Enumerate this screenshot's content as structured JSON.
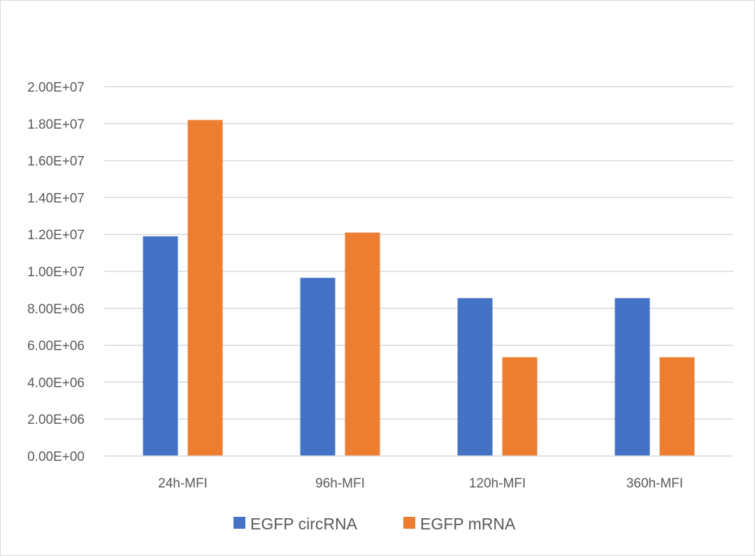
{
  "chart_data": {
    "type": "bar",
    "title": "",
    "xlabel": "",
    "ylabel": "",
    "categories": [
      "24h-MFI",
      "96h-MFI",
      "120h-MFI",
      "360h-MFI"
    ],
    "series": [
      {
        "name": "EGFP circRNA",
        "color": "#4472c4",
        "values": [
          11900000,
          9650000,
          8550000,
          8550000
        ]
      },
      {
        "name": "EGFP mRNA",
        "color": "#ed7d31",
        "values": [
          18200000,
          12100000,
          5350000,
          5350000
        ]
      }
    ],
    "ylim": [
      0,
      20000000
    ],
    "y_ticks": [
      {
        "value": 0,
        "label": "0.00E+00"
      },
      {
        "value": 2000000,
        "label": "2.00E+06"
      },
      {
        "value": 4000000,
        "label": "4.00E+06"
      },
      {
        "value": 6000000,
        "label": "6.00E+06"
      },
      {
        "value": 8000000,
        "label": "8.00E+06"
      },
      {
        "value": 10000000,
        "label": "1.00E+07"
      },
      {
        "value": 12000000,
        "label": "1.20E+07"
      },
      {
        "value": 14000000,
        "label": "1.40E+07"
      },
      {
        "value": 16000000,
        "label": "1.60E+07"
      },
      {
        "value": 18000000,
        "label": "1.80E+07"
      },
      {
        "value": 20000000,
        "label": "2.00E+07"
      }
    ],
    "grid": true,
    "legend_position": "bottom"
  }
}
